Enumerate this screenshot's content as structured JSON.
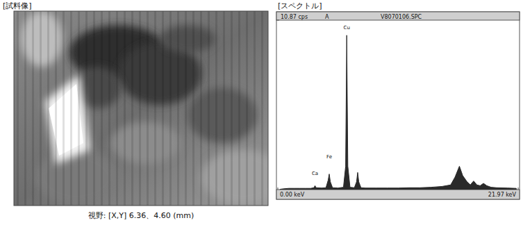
{
  "sample_image": {
    "title": "[試料像]",
    "caption": "視野: [X,Y] 6.36、4.60 (mm)"
  },
  "chart_data": {
    "type": "area",
    "title": "[スペクトル]",
    "subtitle": [
      "A",
      "V8070106.SPC"
    ],
    "x": [
      0.2,
      0.5,
      1.0,
      1.5,
      2.0,
      2.5,
      3.0,
      3.3,
      3.4,
      3.5,
      4.0,
      4.4,
      4.6,
      4.7,
      4.8,
      5.0,
      5.5,
      6.0,
      6.2,
      6.3,
      6.4,
      6.6,
      7.0,
      7.2,
      7.3,
      7.4,
      7.6,
      8.0,
      9.0,
      10.0,
      11.0,
      12.0,
      13.0,
      14.0,
      15.0,
      15.8,
      16.2,
      16.6,
      16.9,
      17.3,
      17.6,
      17.9,
      18.2,
      18.5,
      18.8,
      19.1,
      19.5,
      20.0,
      21.0,
      21.8
    ],
    "values": [
      0.02,
      0.05,
      0.08,
      0.08,
      0.08,
      0.08,
      0.08,
      0.12,
      0.25,
      0.12,
      0.1,
      0.12,
      0.6,
      1.0,
      0.5,
      0.12,
      0.1,
      0.15,
      1.5,
      9.9,
      1.5,
      0.15,
      0.12,
      0.5,
      1.1,
      0.5,
      0.12,
      0.1,
      0.1,
      0.1,
      0.1,
      0.12,
      0.12,
      0.15,
      0.2,
      0.3,
      0.8,
      1.5,
      0.9,
      0.5,
      0.3,
      0.55,
      0.3,
      0.25,
      0.4,
      0.25,
      0.15,
      0.12,
      0.1,
      0.08
    ],
    "color": "#2a2a2a",
    "xlim": [
      0,
      21.97
    ],
    "ylim": [
      0,
      10.87
    ],
    "xticks": [
      {
        "value": 0,
        "label": "0.00 keV"
      },
      {
        "value": 21.97,
        "label": "21.97 keV"
      }
    ],
    "yticks": [
      {
        "value": 10.87,
        "label": "10.87 cps"
      }
    ],
    "annotations": [
      {
        "text": "Ca",
        "x": 3.4,
        "y": 0.95
      },
      {
        "text": "Fe",
        "x": 4.7,
        "y": 2.0
      },
      {
        "text": "Cu",
        "x": 6.3,
        "y": 10.3
      }
    ],
    "grid": false
  }
}
